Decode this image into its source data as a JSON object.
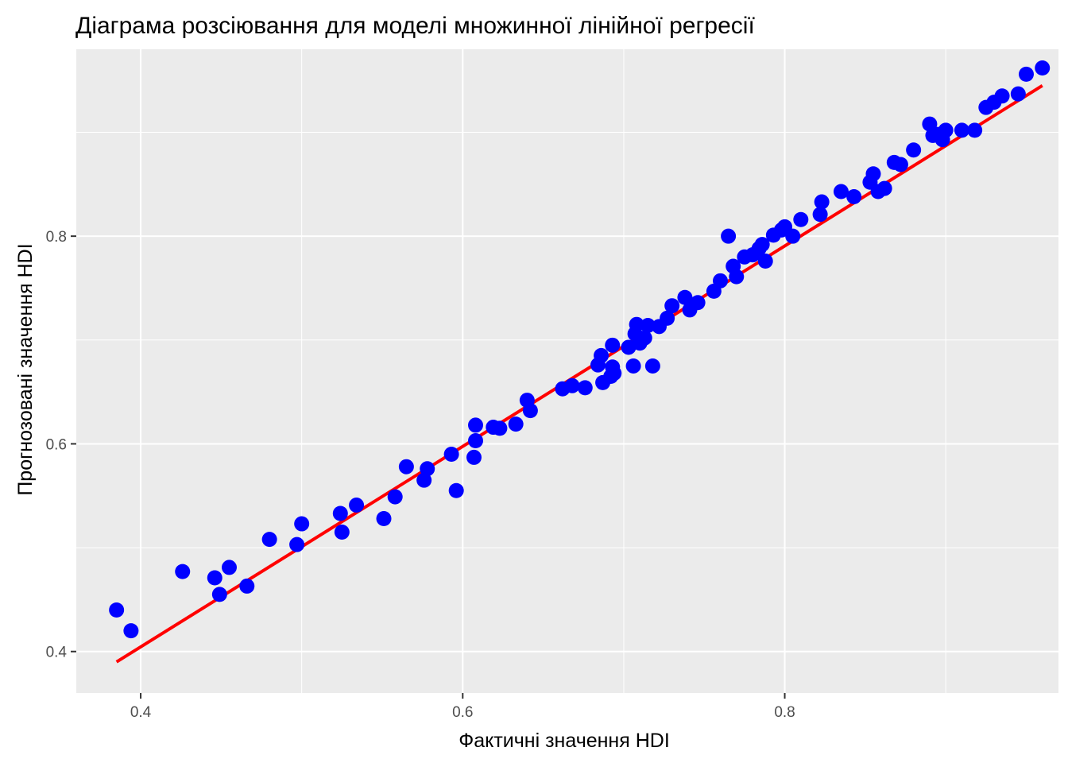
{
  "chart_data": {
    "type": "scatter",
    "title": "Діаграма розсіювання для моделі множинної лінійної регресії",
    "xlabel": "Фактичні значення HDI",
    "ylabel": "Прогнозовані значення HDI",
    "xlim": [
      0.36,
      0.97
    ],
    "ylim": [
      0.36,
      0.98
    ],
    "xticks": [
      0.4,
      0.6,
      0.8
    ],
    "yticks": [
      0.4,
      0.6,
      0.8
    ],
    "xtick_labels": [
      "0.4",
      "0.6",
      "0.8"
    ],
    "ytick_labels": [
      "0.4",
      "0.6",
      "0.8"
    ],
    "grid": true,
    "point_color": "#0000ff",
    "line_color": "#ff0000",
    "fit_line": {
      "x": [
        0.385,
        0.96
      ],
      "y": [
        0.39,
        0.945
      ]
    },
    "points": [
      [
        0.385,
        0.44
      ],
      [
        0.394,
        0.42
      ],
      [
        0.426,
        0.477
      ],
      [
        0.446,
        0.471
      ],
      [
        0.449,
        0.455
      ],
      [
        0.455,
        0.481
      ],
      [
        0.466,
        0.463
      ],
      [
        0.48,
        0.508
      ],
      [
        0.497,
        0.503
      ],
      [
        0.5,
        0.523
      ],
      [
        0.524,
        0.533
      ],
      [
        0.525,
        0.515
      ],
      [
        0.534,
        0.541
      ],
      [
        0.551,
        0.528
      ],
      [
        0.558,
        0.549
      ],
      [
        0.565,
        0.578
      ],
      [
        0.576,
        0.565
      ],
      [
        0.578,
        0.576
      ],
      [
        0.593,
        0.59
      ],
      [
        0.596,
        0.555
      ],
      [
        0.607,
        0.587
      ],
      [
        0.608,
        0.603
      ],
      [
        0.608,
        0.618
      ],
      [
        0.619,
        0.616
      ],
      [
        0.623,
        0.615
      ],
      [
        0.633,
        0.619
      ],
      [
        0.64,
        0.642
      ],
      [
        0.642,
        0.632
      ],
      [
        0.662,
        0.653
      ],
      [
        0.668,
        0.656
      ],
      [
        0.676,
        0.654
      ],
      [
        0.684,
        0.676
      ],
      [
        0.686,
        0.685
      ],
      [
        0.687,
        0.659
      ],
      [
        0.692,
        0.665
      ],
      [
        0.693,
        0.674
      ],
      [
        0.693,
        0.695
      ],
      [
        0.694,
        0.668
      ],
      [
        0.703,
        0.693
      ],
      [
        0.706,
        0.675
      ],
      [
        0.707,
        0.706
      ],
      [
        0.708,
        0.715
      ],
      [
        0.71,
        0.697
      ],
      [
        0.713,
        0.702
      ],
      [
        0.715,
        0.714
      ],
      [
        0.718,
        0.675
      ],
      [
        0.722,
        0.713
      ],
      [
        0.727,
        0.721
      ],
      [
        0.73,
        0.733
      ],
      [
        0.738,
        0.741
      ],
      [
        0.741,
        0.729
      ],
      [
        0.746,
        0.736
      ],
      [
        0.756,
        0.747
      ],
      [
        0.76,
        0.757
      ],
      [
        0.765,
        0.8
      ],
      [
        0.768,
        0.771
      ],
      [
        0.77,
        0.761
      ],
      [
        0.775,
        0.78
      ],
      [
        0.78,
        0.782
      ],
      [
        0.784,
        0.788
      ],
      [
        0.786,
        0.792
      ],
      [
        0.788,
        0.776
      ],
      [
        0.793,
        0.801
      ],
      [
        0.798,
        0.806
      ],
      [
        0.8,
        0.809
      ],
      [
        0.805,
        0.8
      ],
      [
        0.81,
        0.816
      ],
      [
        0.822,
        0.821
      ],
      [
        0.823,
        0.833
      ],
      [
        0.835,
        0.843
      ],
      [
        0.843,
        0.838
      ],
      [
        0.853,
        0.852
      ],
      [
        0.855,
        0.86
      ],
      [
        0.858,
        0.843
      ],
      [
        0.862,
        0.846
      ],
      [
        0.868,
        0.871
      ],
      [
        0.872,
        0.869
      ],
      [
        0.88,
        0.883
      ],
      [
        0.89,
        0.908
      ],
      [
        0.892,
        0.897
      ],
      [
        0.895,
        0.898
      ],
      [
        0.898,
        0.893
      ],
      [
        0.9,
        0.902
      ],
      [
        0.91,
        0.902
      ],
      [
        0.918,
        0.902
      ],
      [
        0.925,
        0.924
      ],
      [
        0.93,
        0.929
      ],
      [
        0.935,
        0.935
      ],
      [
        0.945,
        0.937
      ],
      [
        0.95,
        0.956
      ],
      [
        0.96,
        0.962
      ]
    ]
  }
}
